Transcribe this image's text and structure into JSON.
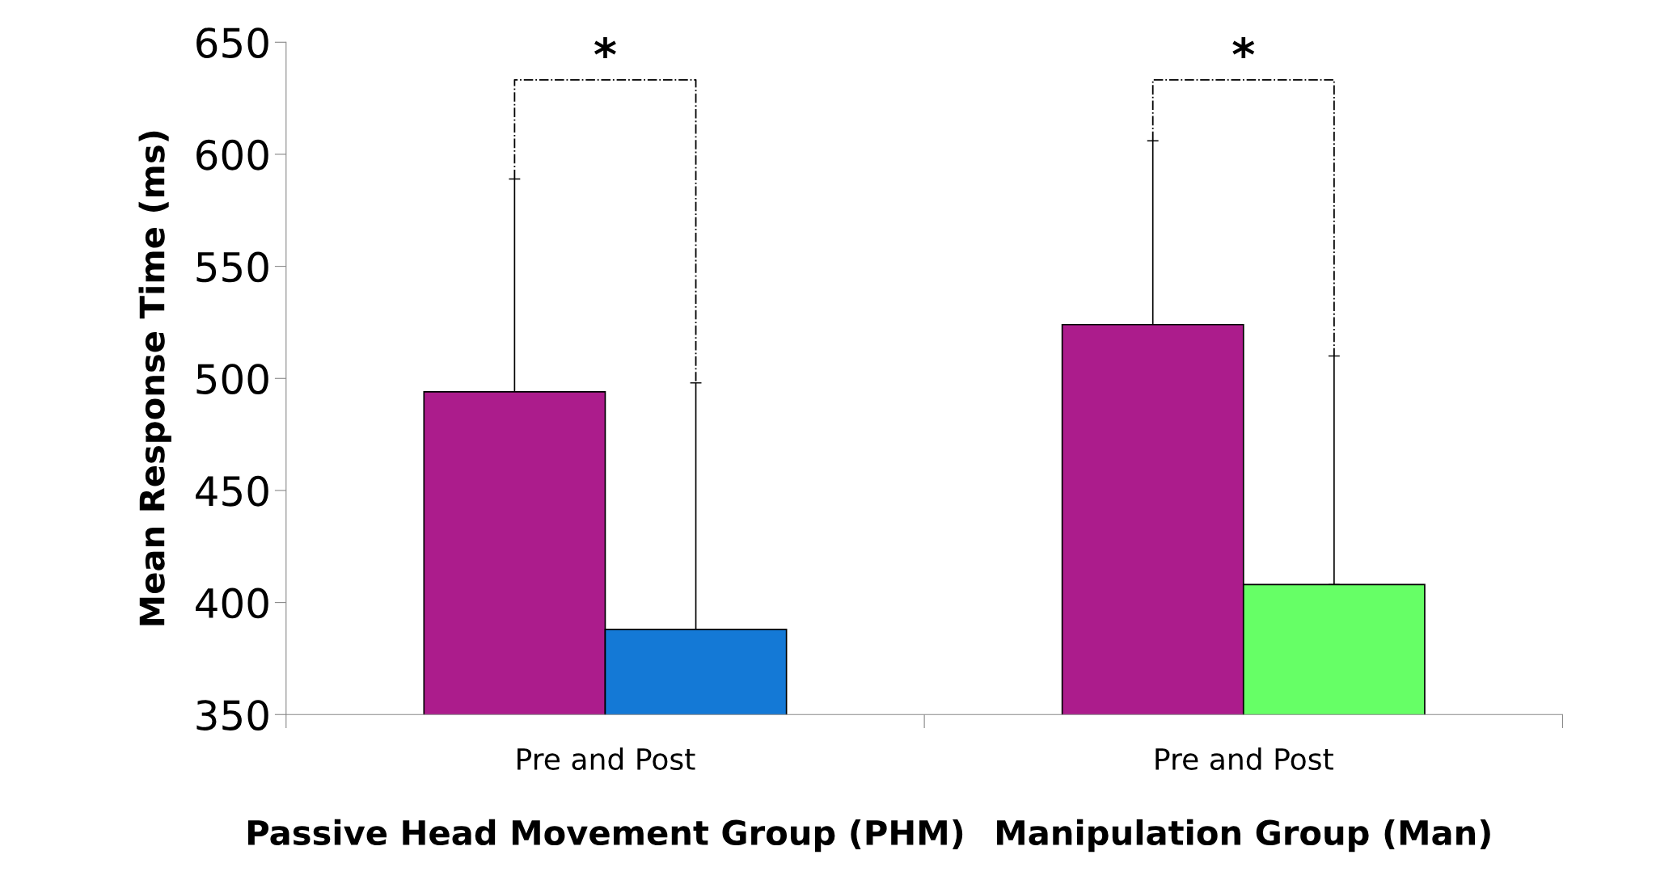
{
  "chart_data": {
    "type": "bar",
    "ylabel": "Mean Response Time (ms)",
    "categories": [
      "Pre and Post",
      "Pre and Post"
    ],
    "series": [
      {
        "color": "#ac1c8c",
        "values": [
          494,
          524
        ],
        "errors": [
          [
            494,
            589
          ],
          [
            524,
            606
          ]
        ]
      },
      {
        "colors": [
          "#1479d6",
          "#66ff66"
        ],
        "values": [
          388,
          408
        ],
        "errors": [
          [
            388,
            498
          ],
          [
            408,
            510
          ]
        ]
      }
    ],
    "annotations": [
      "*",
      "*",
      "Passive Head Movement Group (PHM)",
      "Manipulation Group (Man)"
    ],
    "ylim": [
      350,
      650
    ],
    "yticks": [
      350,
      400,
      450,
      500,
      550,
      600,
      650
    ],
    "grid": false,
    "legend": false
  }
}
